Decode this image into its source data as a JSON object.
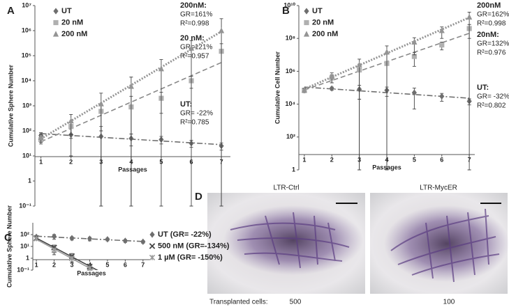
{
  "chart_data": [
    {
      "panel": "A",
      "type": "line",
      "y_label": "Cumulative Sphere Number",
      "x_label": "Passages",
      "x": [
        1,
        2,
        3,
        4,
        5,
        6,
        7
      ],
      "xlim": [
        0.8,
        7.3
      ],
      "xticks": [
        1,
        2,
        3,
        4,
        5,
        6,
        7
      ],
      "log_y": true,
      "ylim": [
        0.1,
        10000000
      ],
      "yticks": [
        {
          "value": 0.1,
          "label": "10⁻¹"
        },
        1,
        {
          "value": 10,
          "label": "10¹"
        },
        {
          "value": 100,
          "label": "10²"
        },
        {
          "value": 1000,
          "label": "10³"
        },
        {
          "value": 10000,
          "label": "10⁴"
        },
        {
          "value": 100000,
          "label": "10⁵"
        },
        {
          "value": 1000000,
          "label": "10⁶"
        },
        {
          "value": 10000000,
          "label": "10⁷"
        }
      ],
      "series": [
        {
          "name": "UT",
          "color": "#6e6e6e",
          "marker": "diamond",
          "trend": "dashdot",
          "values": [
            65,
            70,
            60,
            50,
            45,
            32,
            25
          ],
          "errors": [
            20,
            60,
            90,
            25,
            15,
            10,
            8
          ],
          "annotation": [
            "UT:",
            "GR= -22%",
            "R²=0.785"
          ]
        },
        {
          "name": "20 nM",
          "color": "#b0b0b0",
          "marker": "square",
          "trend": "dashed",
          "values": [
            45,
            150,
            600,
            900,
            2000,
            10000,
            150000
          ],
          "errors": [
            15,
            80,
            500,
            1500,
            1500,
            5000,
            150000
          ],
          "annotation": [
            "20 nM:",
            "GR=121%",
            "R²=0.957"
          ]
        },
        {
          "name": "200 nM",
          "color": "#949494",
          "marker": "triangle",
          "trend": "dotted",
          "values": [
            55,
            250,
            1200,
            6000,
            30000,
            200000,
            1000000
          ],
          "errors": [
            20,
            200,
            2000,
            8000,
            40000,
            200000,
            2000000
          ],
          "annotation": [
            "200nM:",
            "GR=161%",
            "R²=0.998"
          ]
        }
      ]
    },
    {
      "panel": "B",
      "type": "line",
      "y_label": "Cumulative Cell Number",
      "x_label": "Passages",
      "x": [
        1,
        2,
        3,
        4,
        5,
        6,
        7
      ],
      "xlim": [
        0.8,
        7.2
      ],
      "xticks": [
        1,
        2,
        3,
        4,
        5,
        6,
        7
      ],
      "log_y": true,
      "ylim": [
        1,
        10000000000
      ],
      "yticks": [
        1,
        {
          "value": 100,
          "label": "10²"
        },
        {
          "value": 10000,
          "label": "10⁴"
        },
        {
          "value": 1000000,
          "label": "10⁶"
        },
        {
          "value": 100000000,
          "label": "10⁸"
        },
        {
          "value": 10000000000,
          "label": "10¹⁰"
        }
      ],
      "series": [
        {
          "name": "UT",
          "color": "#6e6e6e",
          "marker": "diamond",
          "trend": "dashdot",
          "values": [
            70000,
            90000,
            80000,
            70000,
            50000,
            30000,
            15000
          ],
          "errors": [
            20000,
            20000,
            60000,
            40000,
            45000,
            15000,
            6000
          ],
          "annotation": [
            "UT:",
            "GR= -32%",
            "R²=0.802"
          ]
        },
        {
          "name": "20 nM",
          "color": "#b0b0b0",
          "marker": "square",
          "trend": "dashed",
          "values": [
            70000,
            400000,
            1200000,
            3000000,
            8000000,
            40000000,
            400000000
          ],
          "errors": [
            20000,
            200000,
            1500000,
            8000000,
            6000000,
            20000000,
            300000000
          ],
          "annotation": [
            "20nM:",
            "GR=132%",
            "R²=0.976"
          ]
        },
        {
          "name": "200 nM",
          "color": "#949494",
          "marker": "triangle",
          "trend": "dotted",
          "values": [
            70000,
            500000,
            2500000,
            15000000,
            60000000,
            300000000,
            2000000000
          ],
          "errors": [
            20000,
            300000,
            3000000,
            20000000,
            50000000,
            200000000,
            2000000000
          ],
          "annotation": [
            "200nM",
            "GR=162%",
            "R²=0.998"
          ]
        }
      ]
    },
    {
      "panel": "C",
      "type": "line",
      "y_label": "Cumulative Sphere Number",
      "x_label": "Passages",
      "x": [
        1,
        2,
        3,
        4,
        5,
        6,
        7
      ],
      "xlim": [
        0.8,
        7.4
      ],
      "xticks": [
        1,
        2,
        3,
        4,
        5,
        6,
        7
      ],
      "log_y": true,
      "ylim": [
        0.1,
        1000
      ],
      "yticks": [
        {
          "value": 0.1,
          "label": "10⁻¹"
        },
        1,
        {
          "value": 10,
          "label": "10¹"
        },
        {
          "value": 100,
          "label": "10²"
        }
      ],
      "series": [
        {
          "name": "UT (GR= -22%)",
          "color": "#6e6e6e",
          "marker": "diamond",
          "trend": "dashdot",
          "values": [
            65,
            70,
            50,
            45,
            40,
            30,
            25
          ],
          "errors": [
            10,
            30,
            15,
            15,
            10,
            8,
            6
          ]
        },
        {
          "name": "500 nM (GR=-134%)",
          "color": "#444444",
          "marker": "cross",
          "trend": "solid",
          "values": [
            50,
            8,
            1.5,
            0.2,
            null,
            null,
            null
          ],
          "errors": [
            10,
            5,
            1,
            0.1,
            null,
            null,
            null
          ]
        },
        {
          "name": "1 µM (GR= -150%)",
          "color": "#9a9a9a",
          "marker": "star",
          "trend": "solid",
          "values": [
            45,
            5,
            1,
            0.15,
            null,
            null,
            null
          ],
          "errors": [
            10,
            3,
            0.6,
            0.08,
            null,
            null,
            null
          ]
        }
      ]
    }
  ],
  "panel_d": {
    "panel": "D",
    "images": [
      "LTR-Ctrl",
      "LTR-MycER"
    ],
    "caption": "Transplanted cells:",
    "cells": [
      "500",
      "100"
    ]
  }
}
